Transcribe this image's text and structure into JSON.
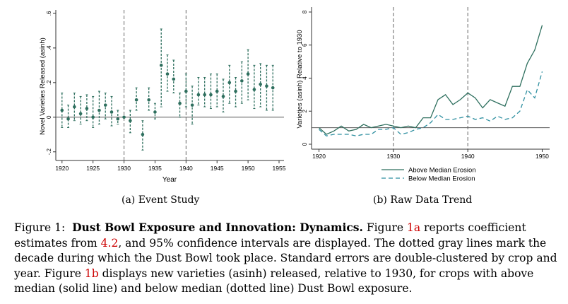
{
  "chart_data": [
    {
      "type": "scatter",
      "panel": "event-study",
      "subcaption": "(a) Event Study",
      "xlabel": "Year",
      "ylabel": "Novel Varieties Released (asinh)",
      "xlim": [
        1919,
        1955
      ],
      "ylim": [
        -0.25,
        0.62
      ],
      "xticks": [
        1920,
        1925,
        1930,
        1935,
        1940,
        1945,
        1950,
        1955
      ],
      "yticks": [
        -0.2,
        0,
        0.2,
        0.4,
        0.6
      ],
      "ytick_labels": [
        "-.2",
        "0",
        ".2",
        ".4",
        ".6"
      ],
      "reference_lines_x": [
        1930,
        1940
      ],
      "reference_line_y": 0,
      "points": [
        {
          "x": 1920,
          "y": 0.04,
          "lo": -0.06,
          "hi": 0.14
        },
        {
          "x": 1921,
          "y": -0.01,
          "lo": -0.06,
          "hi": 0.07
        },
        {
          "x": 1922,
          "y": 0.06,
          "lo": -0.02,
          "hi": 0.14
        },
        {
          "x": 1923,
          "y": 0.02,
          "lo": -0.04,
          "hi": 0.12
        },
        {
          "x": 1924,
          "y": 0.05,
          "lo": -0.02,
          "hi": 0.13
        },
        {
          "x": 1925,
          "y": 0.0,
          "lo": -0.06,
          "hi": 0.12
        },
        {
          "x": 1926,
          "y": 0.04,
          "lo": -0.04,
          "hi": 0.15
        },
        {
          "x": 1927,
          "y": 0.07,
          "lo": -0.01,
          "hi": 0.14
        },
        {
          "x": 1928,
          "y": 0.03,
          "lo": -0.05,
          "hi": 0.12
        },
        {
          "x": 1929,
          "y": -0.01,
          "lo": -0.04,
          "hi": 0.04
        },
        {
          "x": 1930,
          "y": 0.0,
          "lo": 0.0,
          "hi": 0.0
        },
        {
          "x": 1931,
          "y": -0.02,
          "lo": -0.09,
          "hi": 0.04
        },
        {
          "x": 1932,
          "y": 0.1,
          "lo": 0.04,
          "hi": 0.17
        },
        {
          "x": 1933,
          "y": -0.1,
          "lo": -0.19,
          "hi": -0.02
        },
        {
          "x": 1934,
          "y": 0.1,
          "lo": 0.04,
          "hi": 0.17
        },
        {
          "x": 1935,
          "y": 0.03,
          "lo": -0.01,
          "hi": 0.08
        },
        {
          "x": 1936,
          "y": 0.3,
          "lo": 0.06,
          "hi": 0.51
        },
        {
          "x": 1937,
          "y": 0.25,
          "lo": 0.15,
          "hi": 0.36
        },
        {
          "x": 1938,
          "y": 0.22,
          "lo": 0.14,
          "hi": 0.33
        },
        {
          "x": 1939,
          "y": 0.08,
          "lo": 0.0,
          "hi": 0.14
        },
        {
          "x": 1940,
          "y": 0.15,
          "lo": 0.06,
          "hi": 0.25
        },
        {
          "x": 1941,
          "y": 0.07,
          "lo": -0.04,
          "hi": 0.18
        },
        {
          "x": 1942,
          "y": 0.13,
          "lo": 0.07,
          "hi": 0.23
        },
        {
          "x": 1943,
          "y": 0.13,
          "lo": 0.06,
          "hi": 0.23
        },
        {
          "x": 1944,
          "y": 0.13,
          "lo": 0.05,
          "hi": 0.25
        },
        {
          "x": 1945,
          "y": 0.15,
          "lo": 0.06,
          "hi": 0.25
        },
        {
          "x": 1946,
          "y": 0.12,
          "lo": 0.03,
          "hi": 0.22
        },
        {
          "x": 1947,
          "y": 0.2,
          "lo": 0.08,
          "hi": 0.3
        },
        {
          "x": 1948,
          "y": 0.15,
          "lo": 0.06,
          "hi": 0.23
        },
        {
          "x": 1949,
          "y": 0.21,
          "lo": 0.08,
          "hi": 0.32
        },
        {
          "x": 1950,
          "y": 0.25,
          "lo": 0.1,
          "hi": 0.39
        },
        {
          "x": 1951,
          "y": 0.16,
          "lo": 0.05,
          "hi": 0.3
        },
        {
          "x": 1952,
          "y": 0.19,
          "lo": 0.06,
          "hi": 0.31
        },
        {
          "x": 1953,
          "y": 0.18,
          "lo": 0.04,
          "hi": 0.3
        },
        {
          "x": 1954,
          "y": 0.17,
          "lo": 0.04,
          "hi": 0.3
        }
      ],
      "colors": {
        "marker": "#2e6f5e",
        "ci": "#2e6f5e",
        "zero": "#555555",
        "event": "#666666"
      }
    },
    {
      "type": "line",
      "panel": "raw-data-trend",
      "subcaption": "(b) Raw Data Trend",
      "xlabel": "",
      "ylabel": "Varieties (asinh) Relative to 1930",
      "xlim": [
        1919,
        1951
      ],
      "ylim": [
        -0.3,
        8.3
      ],
      "xticks": [
        1920,
        1930,
        1940,
        1950
      ],
      "yticks": [
        0,
        2,
        4,
        6,
        8
      ],
      "reference_lines_x": [
        1930,
        1940
      ],
      "reference_line_y": 1,
      "legend_position": "bottom-right",
      "x": [
        1920,
        1921,
        1922,
        1923,
        1924,
        1925,
        1926,
        1927,
        1928,
        1929,
        1930,
        1931,
        1932,
        1933,
        1934,
        1935,
        1936,
        1937,
        1938,
        1939,
        1940,
        1941,
        1942,
        1943,
        1944,
        1945,
        1946,
        1947,
        1948,
        1949,
        1950
      ],
      "series": [
        {
          "name": "Above Median Erosion",
          "style": "solid",
          "color": "#2e6f5e",
          "values": [
            1.0,
            0.6,
            0.8,
            1.1,
            0.8,
            0.9,
            1.2,
            1.0,
            1.1,
            1.2,
            1.1,
            1.0,
            1.1,
            1.0,
            1.6,
            1.6,
            2.7,
            3.0,
            2.4,
            2.7,
            3.1,
            2.8,
            2.2,
            2.7,
            2.5,
            2.3,
            3.5,
            3.5,
            4.9,
            5.7,
            7.2
          ]
        },
        {
          "name": "Below Median Erosion",
          "style": "dashed",
          "color": "#2e8fa0",
          "values": [
            0.9,
            0.5,
            0.6,
            0.6,
            0.6,
            0.5,
            0.6,
            0.6,
            0.9,
            0.9,
            1.0,
            0.6,
            0.7,
            0.9,
            1.0,
            1.3,
            1.8,
            1.5,
            1.5,
            1.6,
            1.7,
            1.5,
            1.6,
            1.4,
            1.7,
            1.5,
            1.6,
            2.0,
            3.3,
            2.8,
            4.4
          ]
        }
      ],
      "colors": {
        "baseline": "#555555",
        "event": "#666666"
      }
    }
  ],
  "caption": {
    "label": "Figure 1:",
    "title": "Dust Bowl Exposure and Innovation: Dynamics.",
    "t1": "Figure",
    "r1": "1a",
    "t2": "reports coefficient estimates from",
    "r2": "4.2",
    "t3": ", and 95% confidence intervals are displayed. The dotted gray lines mark the decade during which the Dust Bowl took place. Standard errors are double-clustered by crop and year. Figure",
    "r3": "1b",
    "t4": "displays new varieties (asinh) released, relative to 1930, for crops with above median (solid line) and below median (dotted line) Dust Bowl exposure."
  }
}
